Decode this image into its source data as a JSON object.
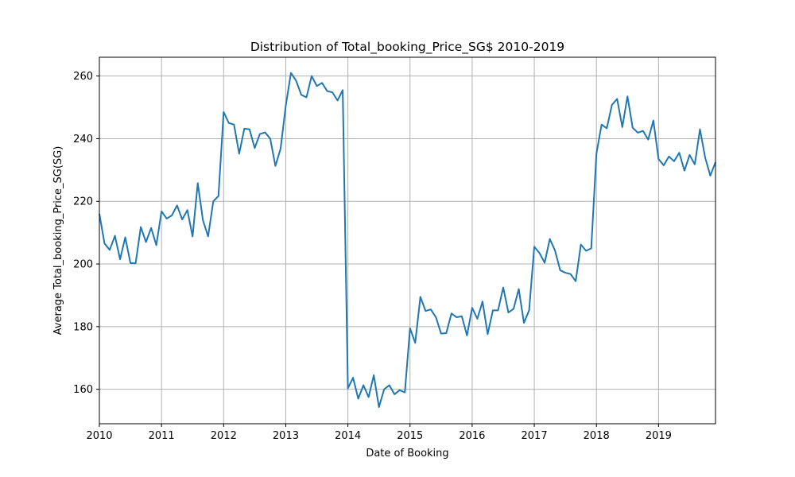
{
  "chart_data": {
    "type": "line",
    "title": "Distribution of Total_booking_Price_SG$ 2010-2019",
    "xlabel": "Date of Booking",
    "ylabel": "Average Total_booking_Price_SG(SG)",
    "x_ticks": [
      "2010",
      "2011",
      "2012",
      "2013",
      "2014",
      "2015",
      "2016",
      "2017",
      "2018",
      "2019"
    ],
    "y_ticks": [
      160,
      180,
      200,
      220,
      240,
      260
    ],
    "xlim": [
      "2010-01",
      "2019-12"
    ],
    "ylim": [
      149,
      266
    ],
    "grid": true,
    "line_color": "#1f77b4",
    "series": [
      {
        "x": [
          "2010-01",
          "2010-02",
          "2010-03",
          "2010-04",
          "2010-05",
          "2010-06",
          "2010-07",
          "2010-08",
          "2010-09",
          "2010-10",
          "2010-11",
          "2010-12",
          "2011-01",
          "2011-02",
          "2011-03",
          "2011-04",
          "2011-05",
          "2011-06",
          "2011-07",
          "2011-08",
          "2011-09",
          "2011-10",
          "2011-11",
          "2011-12",
          "2012-01",
          "2012-02",
          "2012-03",
          "2012-04",
          "2012-05",
          "2012-06",
          "2012-07",
          "2012-08",
          "2012-09",
          "2012-10",
          "2012-11",
          "2012-12",
          "2013-01",
          "2013-02",
          "2013-03",
          "2013-04",
          "2013-05",
          "2013-06",
          "2013-07",
          "2013-08",
          "2013-09",
          "2013-10",
          "2013-11",
          "2013-12",
          "2014-01",
          "2014-02",
          "2014-03",
          "2014-04",
          "2014-05",
          "2014-06",
          "2014-07",
          "2014-08",
          "2014-09",
          "2014-10",
          "2014-11",
          "2014-12",
          "2015-01",
          "2015-02",
          "2015-03",
          "2015-04",
          "2015-05",
          "2015-06",
          "2015-07",
          "2015-08",
          "2015-09",
          "2015-10",
          "2015-11",
          "2015-12",
          "2016-01",
          "2016-02",
          "2016-03",
          "2016-04",
          "2016-05",
          "2016-06",
          "2016-07",
          "2016-08",
          "2016-09",
          "2016-10",
          "2016-11",
          "2016-12",
          "2017-01",
          "2017-02",
          "2017-03",
          "2017-04",
          "2017-05",
          "2017-06",
          "2017-07",
          "2017-08",
          "2017-09",
          "2017-10",
          "2017-11",
          "2017-12",
          "2018-01",
          "2018-02",
          "2018-03",
          "2018-04",
          "2018-05",
          "2018-06",
          "2018-07",
          "2018-08",
          "2018-09",
          "2018-10",
          "2018-11",
          "2018-12",
          "2019-01",
          "2019-02",
          "2019-03",
          "2019-04",
          "2019-05",
          "2019-06",
          "2019-07",
          "2019-08",
          "2019-09",
          "2019-10",
          "2019-11",
          "2019-12"
        ],
        "values": [
          216.0,
          206.5,
          204.5,
          209.0,
          201.5,
          208.5,
          200.3,
          200.2,
          211.8,
          207.0,
          211.5,
          206.0,
          216.8,
          214.5,
          215.5,
          218.7,
          214.2,
          217.2,
          208.8,
          225.8,
          214.0,
          208.8,
          220.0,
          221.7,
          248.5,
          245.0,
          244.5,
          235.2,
          243.2,
          243.0,
          237.0,
          241.5,
          242.0,
          240.0,
          231.3,
          236.8,
          250.5,
          261.0,
          258.5,
          254.0,
          253.2,
          260.0,
          256.8,
          257.8,
          255.2,
          254.8,
          252.2,
          255.5,
          160.3,
          163.7,
          157.0,
          161.3,
          157.5,
          164.5,
          154.3,
          160.0,
          161.3,
          158.4,
          159.7,
          159.0,
          179.5,
          174.8,
          189.5,
          185.0,
          185.5,
          183.0,
          177.8,
          177.9,
          184.2,
          183.0,
          183.3,
          177.2,
          186.0,
          182.5,
          188.0,
          177.6,
          185.2,
          185.2,
          192.5,
          184.5,
          185.7,
          192.0,
          181.2,
          185.2,
          205.5,
          203.5,
          200.4,
          208.0,
          204.3,
          198.0,
          197.2,
          196.8,
          194.5,
          206.2,
          204.2,
          205.0,
          235.2,
          244.5,
          243.3,
          250.8,
          252.7,
          243.7,
          253.5,
          243.5,
          241.9,
          242.5,
          239.7,
          245.8,
          233.5,
          231.5,
          234.3,
          232.8,
          235.5,
          229.8,
          234.8,
          231.8,
          243.0,
          234.0,
          228.2,
          232.5
        ]
      }
    ]
  }
}
